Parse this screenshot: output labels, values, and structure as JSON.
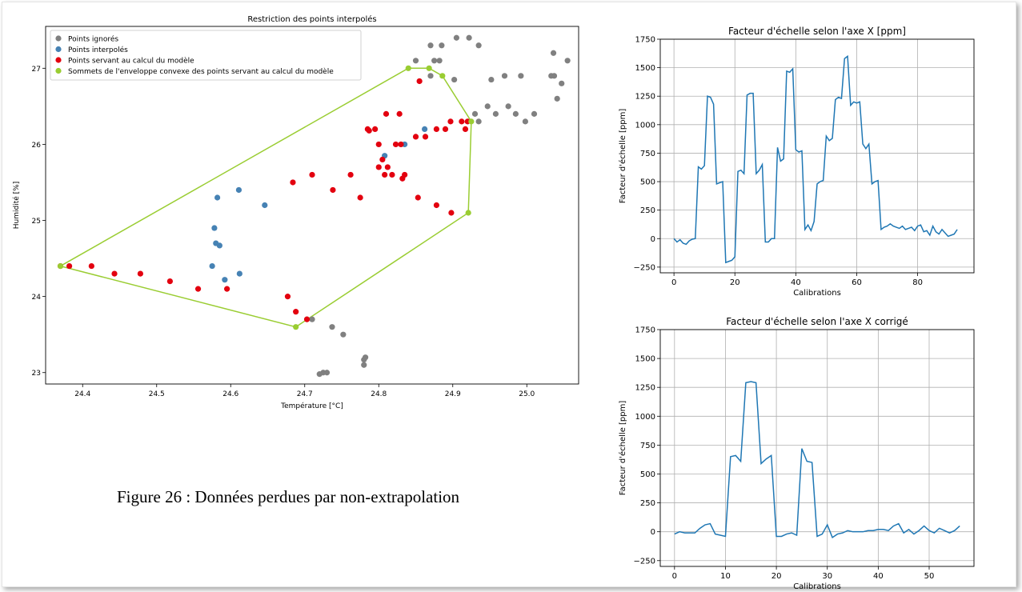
{
  "caption": "Figure 26 : Données perdues par non-extrapolation",
  "colors": {
    "ignored": "#808080",
    "interpolated": "#4682b4",
    "model": "#e3000f",
    "hull": "#9acd32",
    "line": "#1f77b4"
  },
  "chart_data": [
    {
      "type": "scatter",
      "title": "Restriction des points interpolés",
      "xlabel": "Température [°C]",
      "ylabel": "Humidité [%]",
      "xlim": [
        24.35,
        25.07
      ],
      "ylim": [
        22.85,
        27.55
      ],
      "xticks": [
        24.4,
        24.5,
        24.6,
        24.7,
        24.8,
        24.9,
        25.0
      ],
      "xtick_labels": [
        "24.4",
        "24.5",
        "24.6",
        "24.7",
        "24.8",
        "24.9",
        "25.0"
      ],
      "yticks": [
        23,
        24,
        25,
        26,
        27
      ],
      "ytick_labels": [
        "23",
        "24",
        "25",
        "26",
        "27"
      ],
      "grid": false,
      "legend_position": "top-left",
      "series": [
        {
          "name": "Points ignorés",
          "kind": "points",
          "color": "#808080",
          "points": [
            [
              24.72,
              22.98
            ],
            [
              24.725,
              23.0
            ],
            [
              24.73,
              23.0
            ],
            [
              24.78,
              23.1
            ],
            [
              24.78,
              23.17
            ],
            [
              24.782,
              23.2
            ],
            [
              24.71,
              23.7
            ],
            [
              24.737,
              23.6
            ],
            [
              24.752,
              23.5
            ],
            [
              24.85,
              27.1
            ],
            [
              24.87,
              27.3
            ],
            [
              24.885,
              27.3
            ],
            [
              24.875,
              27.1
            ],
            [
              24.882,
              27.1
            ],
            [
              24.87,
              26.9
            ],
            [
              24.902,
              26.85
            ],
            [
              24.905,
              27.4
            ],
            [
              24.922,
              27.4
            ],
            [
              24.935,
              27.3
            ],
            [
              24.952,
              26.85
            ],
            [
              24.97,
              26.9
            ],
            [
              24.992,
              26.9
            ],
            [
              24.947,
              26.5
            ],
            [
              24.93,
              26.4
            ],
            [
              24.935,
              26.3
            ],
            [
              24.958,
              26.4
            ],
            [
              24.975,
              26.5
            ],
            [
              24.985,
              26.4
            ],
            [
              24.998,
              26.3
            ],
            [
              25.01,
              26.4
            ],
            [
              25.033,
              26.9
            ],
            [
              25.037,
              26.9
            ],
            [
              25.036,
              27.2
            ],
            [
              25.047,
              26.8
            ],
            [
              25.055,
              27.1
            ],
            [
              25.041,
              26.6
            ]
          ]
        },
        {
          "name": "Points interpolés",
          "kind": "points",
          "color": "#4682b4",
          "points": [
            [
              24.575,
              24.4
            ],
            [
              24.58,
              24.7
            ],
            [
              24.585,
              24.67
            ],
            [
              24.592,
              24.22
            ],
            [
              24.612,
              24.3
            ],
            [
              24.578,
              24.9
            ],
            [
              24.582,
              25.3
            ],
            [
              24.611,
              25.4
            ],
            [
              24.646,
              25.2
            ],
            [
              24.808,
              25.85
            ],
            [
              24.835,
              26.0
            ],
            [
              24.862,
              26.2
            ]
          ]
        },
        {
          "name": "Points servant au calcul du modèle",
          "kind": "points",
          "color": "#e3000f",
          "points": [
            [
              24.37,
              24.4
            ],
            [
              24.382,
              24.4
            ],
            [
              24.412,
              24.4
            ],
            [
              24.443,
              24.3
            ],
            [
              24.478,
              24.3
            ],
            [
              24.518,
              24.2
            ],
            [
              24.556,
              24.1
            ],
            [
              24.595,
              24.1
            ],
            [
              24.677,
              24.0
            ],
            [
              24.688,
              23.8
            ],
            [
              24.703,
              23.7
            ],
            [
              24.684,
              25.5
            ],
            [
              24.71,
              25.6
            ],
            [
              24.738,
              25.4
            ],
            [
              24.762,
              25.6
            ],
            [
              24.775,
              25.3
            ],
            [
              24.785,
              26.2
            ],
            [
              24.787,
              26.18
            ],
            [
              24.795,
              26.2
            ],
            [
              24.8,
              26.0
            ],
            [
              24.8,
              25.7
            ],
            [
              24.805,
              25.8
            ],
            [
              24.808,
              25.6
            ],
            [
              24.812,
              25.7
            ],
            [
              24.818,
              25.6
            ],
            [
              24.81,
              26.4
            ],
            [
              24.823,
              26.0
            ],
            [
              24.828,
              26.4
            ],
            [
              24.83,
              26.0
            ],
            [
              24.832,
              25.55
            ],
            [
              24.835,
              25.6
            ],
            [
              24.85,
              26.1
            ],
            [
              24.863,
              26.1
            ],
            [
              24.855,
              26.83
            ],
            [
              24.853,
              25.3
            ],
            [
              24.878,
              25.2
            ],
            [
              24.878,
              26.2
            ],
            [
              24.89,
              26.2
            ],
            [
              24.897,
              26.3
            ],
            [
              24.912,
              26.3
            ],
            [
              24.92,
              26.3
            ],
            [
              24.917,
              26.2
            ],
            [
              24.898,
              25.1
            ]
          ]
        },
        {
          "name": "Sommets de l'enveloppe convexe des points servant au calcul du modèle",
          "kind": "polygon",
          "color": "#9acd32",
          "points": [
            [
              24.37,
              24.4
            ],
            [
              24.84,
              27.0
            ],
            [
              24.868,
              27.0
            ],
            [
              24.886,
              26.9
            ],
            [
              24.925,
              26.3
            ],
            [
              24.921,
              25.1
            ],
            [
              24.688,
              23.6
            ]
          ]
        }
      ]
    },
    {
      "type": "line",
      "title": "Facteur d'échelle selon l'axe X [ppm]",
      "xlabel": "Calibrations",
      "ylabel": "Facteur d'échelle [ppm]",
      "xlim": [
        -4.5,
        98.5
      ],
      "ylim": [
        -300,
        1750
      ],
      "xticks": [
        0,
        20,
        40,
        60,
        80
      ],
      "xtick_labels": [
        "0",
        "20",
        "40",
        "60",
        "80"
      ],
      "yticks": [
        -250,
        0,
        250,
        500,
        750,
        1000,
        1250,
        1500,
        1750
      ],
      "ytick_labels": [
        "−250",
        "0",
        "250",
        "500",
        "750",
        "1000",
        "1250",
        "1500",
        "1750"
      ],
      "grid": true,
      "values": [
        0,
        -30,
        -10,
        -40,
        -50,
        -20,
        -5,
        0,
        630,
        610,
        640,
        1250,
        1240,
        1180,
        480,
        490,
        500,
        -210,
        -200,
        -190,
        -160,
        590,
        600,
        570,
        1260,
        1275,
        1275,
        570,
        600,
        650,
        -30,
        -30,
        0,
        0,
        800,
        680,
        700,
        1470,
        1460,
        1490,
        780,
        760,
        770,
        80,
        120,
        70,
        150,
        480,
        500,
        510,
        900,
        860,
        880,
        1220,
        1240,
        1230,
        1580,
        1600,
        1170,
        1200,
        1190,
        1200,
        830,
        790,
        830,
        480,
        500,
        510,
        80,
        100,
        110,
        130,
        110,
        100,
        90,
        110,
        80,
        90,
        100,
        70,
        110,
        120,
        60,
        70,
        30,
        110,
        60,
        40,
        80,
        50,
        20,
        30,
        40,
        80
      ]
    },
    {
      "type": "line",
      "title": "Facteur d'échelle selon l'axe X corrigé",
      "xlabel": "Calibrations",
      "ylabel": "Facteur d'échelle [ppm]",
      "xlim": [
        -2.8,
        58.8
      ],
      "ylim": [
        -300,
        1750
      ],
      "xticks": [
        0,
        10,
        20,
        30,
        40,
        50
      ],
      "xtick_labels": [
        "0",
        "10",
        "20",
        "30",
        "40",
        "50"
      ],
      "yticks": [
        -250,
        0,
        250,
        500,
        750,
        1000,
        1250,
        1500,
        1750
      ],
      "ytick_labels": [
        "−250",
        "0",
        "250",
        "500",
        "750",
        "1000",
        "1250",
        "1500",
        "1750"
      ],
      "grid": true,
      "values": [
        -20,
        0,
        -10,
        -10,
        -10,
        30,
        60,
        70,
        -20,
        -30,
        -40,
        650,
        660,
        610,
        1290,
        1300,
        1290,
        590,
        630,
        660,
        -40,
        -40,
        -20,
        -10,
        -30,
        720,
        610,
        600,
        -40,
        -20,
        60,
        -50,
        -20,
        -10,
        10,
        0,
        0,
        0,
        10,
        10,
        20,
        20,
        10,
        50,
        70,
        -10,
        20,
        -20,
        10,
        50,
        10,
        -10,
        30,
        10,
        -10,
        10,
        50
      ]
    }
  ]
}
